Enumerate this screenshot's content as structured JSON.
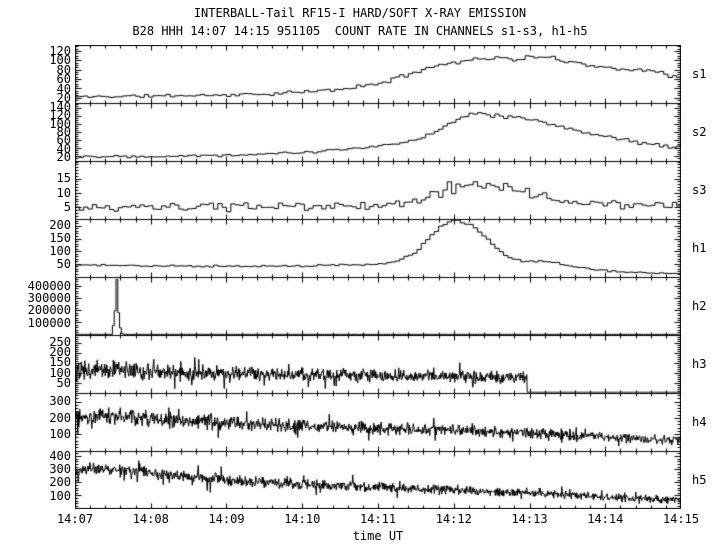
{
  "header": {
    "title": "INTERBALL-Tail RF15-I HARD/SOFT X-RAY EMISSION",
    "subtitle": "B28 HHH 14:07 14:15 951105  COUNT RATE IN CHANNELS s1-s3, h1-h5"
  },
  "colors": {
    "foreground": "#000000",
    "background": "#ffffff"
  },
  "x_axis": {
    "label": "time UT",
    "tick_labels": [
      "14:07",
      "14:08",
      "14:09",
      "14:10",
      "14:11",
      "14:12",
      "14:13",
      "14:14",
      "14:15"
    ],
    "minutes_span": 8,
    "minor_tick_step_minutes": 0.2
  },
  "chart_data": {
    "type": "line",
    "title": "INTERBALL-Tail RF15-I HARD/SOFT X-RAY EMISSION",
    "subtitle": "B28 HHH 14:07 14:15 951105  COUNT RATE IN CHANNELS s1-s3, h1-h5",
    "xlabel": "time UT",
    "x_tick_labels": [
      "14:07",
      "14:08",
      "14:09",
      "14:10",
      "14:11",
      "14:12",
      "14:13",
      "14:14",
      "14:15"
    ],
    "x_range_minutes": [
      0,
      8
    ],
    "grid": false,
    "legend": "channel labels on right side of each panel",
    "panels": [
      {
        "label": "s1",
        "style": "step",
        "bins": 140,
        "seed": 11,
        "ylim": [
          10,
          132
        ],
        "yticks": [
          20,
          40,
          60,
          80,
          100,
          120
        ],
        "ytick_minor_step": 5,
        "noise": [
          [
            0,
            4
          ],
          [
            8,
            6
          ]
        ],
        "anchors": [
          [
            0,
            22
          ],
          [
            0.5,
            23
          ],
          [
            1,
            24
          ],
          [
            1.5,
            25
          ],
          [
            2,
            26
          ],
          [
            2.5,
            28
          ],
          [
            3,
            32
          ],
          [
            3.5,
            38
          ],
          [
            4,
            50
          ],
          [
            4.3,
            64
          ],
          [
            4.6,
            82
          ],
          [
            4.9,
            93
          ],
          [
            5.2,
            101
          ],
          [
            5.5,
            106
          ],
          [
            5.8,
            102
          ],
          [
            6.1,
            108
          ],
          [
            6.35,
            103
          ],
          [
            6.6,
            96
          ],
          [
            6.9,
            88
          ],
          [
            7.2,
            80
          ],
          [
            7.45,
            83
          ],
          [
            7.7,
            74
          ],
          [
            8,
            63
          ]
        ]
      },
      {
        "label": "s2",
        "style": "step",
        "bins": 140,
        "seed": 22,
        "ylim": [
          10,
          150
        ],
        "yticks": [
          20,
          40,
          60,
          80,
          100,
          120,
          140
        ],
        "ytick_minor_step": 5,
        "noise": [
          [
            0,
            4
          ],
          [
            8,
            6
          ]
        ],
        "anchors": [
          [
            0,
            20
          ],
          [
            1,
            21
          ],
          [
            2,
            23
          ],
          [
            2.5,
            26
          ],
          [
            3,
            30
          ],
          [
            3.5,
            36
          ],
          [
            4,
            44
          ],
          [
            4.4,
            56
          ],
          [
            4.7,
            76
          ],
          [
            4.9,
            96
          ],
          [
            5.05,
            112
          ],
          [
            5.25,
            128
          ],
          [
            5.5,
            121
          ],
          [
            5.8,
            116
          ],
          [
            6.1,
            106
          ],
          [
            6.4,
            93
          ],
          [
            6.7,
            81
          ],
          [
            7,
            70
          ],
          [
            7.3,
            60
          ],
          [
            7.6,
            50
          ],
          [
            7.9,
            41
          ],
          [
            8,
            50
          ]
        ]
      },
      {
        "label": "s3",
        "style": "step",
        "bins": 140,
        "seed": 33,
        "ylim": [
          1,
          21
        ],
        "yticks": [
          5,
          10,
          15
        ],
        "ytick_minor_step": 1,
        "noise": [
          [
            0,
            1.7
          ],
          [
            4.5,
            1.8
          ],
          [
            5,
            3.2
          ],
          [
            6,
            2.6
          ],
          [
            6.5,
            1.8
          ],
          [
            8,
            1.6
          ]
        ],
        "anchors": [
          [
            0,
            4.5
          ],
          [
            1,
            4.8
          ],
          [
            2,
            5
          ],
          [
            3,
            5.2
          ],
          [
            4,
            5.5
          ],
          [
            4.5,
            7
          ],
          [
            4.8,
            10
          ],
          [
            5,
            12.5
          ],
          [
            5.3,
            13
          ],
          [
            5.6,
            12
          ],
          [
            5.9,
            11
          ],
          [
            6.1,
            9
          ],
          [
            6.4,
            7.5
          ],
          [
            6.7,
            6.5
          ],
          [
            7,
            6
          ],
          [
            7.5,
            5.5
          ],
          [
            8,
            5.5
          ]
        ]
      },
      {
        "label": "h1",
        "style": "step",
        "bins": 140,
        "seed": 44,
        "ylim": [
          0,
          225
        ],
        "yticks": [
          50,
          100,
          150,
          200
        ],
        "ytick_minor_step": 10,
        "noise": [
          [
            0,
            3.5
          ],
          [
            4.5,
            6
          ],
          [
            5.5,
            5
          ],
          [
            8,
            3
          ]
        ],
        "anchors": [
          [
            0,
            46
          ],
          [
            0.5,
            44
          ],
          [
            1,
            42
          ],
          [
            1.5,
            41
          ],
          [
            2,
            40
          ],
          [
            2.5,
            41
          ],
          [
            3,
            42
          ],
          [
            3.5,
            45
          ],
          [
            4,
            48
          ],
          [
            4.25,
            58
          ],
          [
            4.5,
            95
          ],
          [
            4.7,
            160
          ],
          [
            4.85,
            205
          ],
          [
            5,
            222
          ],
          [
            5.15,
            214
          ],
          [
            5.3,
            190
          ],
          [
            5.45,
            148
          ],
          [
            5.6,
            100
          ],
          [
            5.75,
            72
          ],
          [
            5.95,
            58
          ],
          [
            6.15,
            62
          ],
          [
            6.35,
            56
          ],
          [
            6.55,
            40
          ],
          [
            6.8,
            30
          ],
          [
            7.1,
            20
          ],
          [
            7.5,
            14
          ],
          [
            8,
            11
          ]
        ]
      },
      {
        "label": "h2",
        "style": "step",
        "bins": 340,
        "seed": 55,
        "ylim": [
          0,
          470000
        ],
        "yticks": [
          100000,
          200000,
          300000,
          400000
        ],
        "ytick_minor_step": 20000,
        "noise": [
          [
            0,
            500
          ],
          [
            8,
            500
          ]
        ],
        "anchors": [
          [
            0,
            1200
          ],
          [
            0.5,
            1200
          ],
          [
            0.515,
            190000
          ],
          [
            0.545,
            200000
          ],
          [
            0.552,
            455000
          ],
          [
            0.562,
            455000
          ],
          [
            0.572,
            180000
          ],
          [
            0.592,
            180000
          ],
          [
            0.6,
            55000
          ],
          [
            0.615,
            55000
          ],
          [
            0.625,
            1200
          ],
          [
            8,
            1200
          ]
        ]
      },
      {
        "label": "h3",
        "style": "noise",
        "bins": 1212,
        "seed": 66,
        "ylim": [
          0,
          285
        ],
        "yticks": [
          50,
          100,
          150,
          200,
          250
        ],
        "ytick_minor_step": 10,
        "noise": [
          [
            0,
            58
          ],
          [
            1,
            48
          ],
          [
            2,
            42
          ],
          [
            4,
            38
          ],
          [
            5.97,
            34
          ]
        ],
        "end_t": 5.97,
        "after_value": 1.5,
        "anchors": [
          [
            0,
            112
          ],
          [
            0.3,
            120
          ],
          [
            0.7,
            112
          ],
          [
            1,
            104
          ],
          [
            1.5,
            98
          ],
          [
            2,
            94
          ],
          [
            2.5,
            91
          ],
          [
            3,
            89
          ],
          [
            3.5,
            88
          ],
          [
            4,
            86
          ],
          [
            4.5,
            83
          ],
          [
            5,
            80
          ],
          [
            5.5,
            77
          ],
          [
            5.97,
            75
          ]
        ]
      },
      {
        "label": "h4",
        "style": "noise",
        "bins": 1212,
        "seed": 77,
        "ylim": [
          0,
          350
        ],
        "yticks": [
          100,
          200,
          300
        ],
        "ytick_minor_step": 20,
        "noise": [
          [
            0,
            62
          ],
          [
            2,
            52
          ],
          [
            4,
            45
          ],
          [
            6,
            36
          ],
          [
            8,
            30
          ]
        ],
        "anchors": [
          [
            0,
            205
          ],
          [
            0.3,
            215
          ],
          [
            0.7,
            205
          ],
          [
            1,
            195
          ],
          [
            1.5,
            180
          ],
          [
            2,
            168
          ],
          [
            2.5,
            158
          ],
          [
            3,
            150
          ],
          [
            3.5,
            143
          ],
          [
            4,
            137
          ],
          [
            4.5,
            130
          ],
          [
            5,
            124
          ],
          [
            5.5,
            117
          ],
          [
            6,
            106
          ],
          [
            6.5,
            96
          ],
          [
            7,
            82
          ],
          [
            7.5,
            70
          ],
          [
            8,
            62
          ]
        ]
      },
      {
        "label": "h5",
        "style": "noise",
        "bins": 1212,
        "seed": 88,
        "ylim": [
          0,
          435
        ],
        "yticks": [
          100,
          200,
          300,
          400
        ],
        "ytick_minor_step": 20,
        "noise": [
          [
            0,
            55
          ],
          [
            2,
            50
          ],
          [
            4,
            42
          ],
          [
            6,
            36
          ],
          [
            8,
            32
          ]
        ],
        "anchors": [
          [
            0,
            280
          ],
          [
            0.2,
            305
          ],
          [
            0.5,
            300
          ],
          [
            0.8,
            285
          ],
          [
            1,
            268
          ],
          [
            1.5,
            242
          ],
          [
            2,
            218
          ],
          [
            2.5,
            200
          ],
          [
            3,
            186
          ],
          [
            3.5,
            172
          ],
          [
            4,
            160
          ],
          [
            4.5,
            150
          ],
          [
            5,
            140
          ],
          [
            5.5,
            130
          ],
          [
            6,
            118
          ],
          [
            6.5,
            105
          ],
          [
            7,
            85
          ],
          [
            7.5,
            75
          ],
          [
            8,
            62
          ]
        ]
      }
    ]
  }
}
